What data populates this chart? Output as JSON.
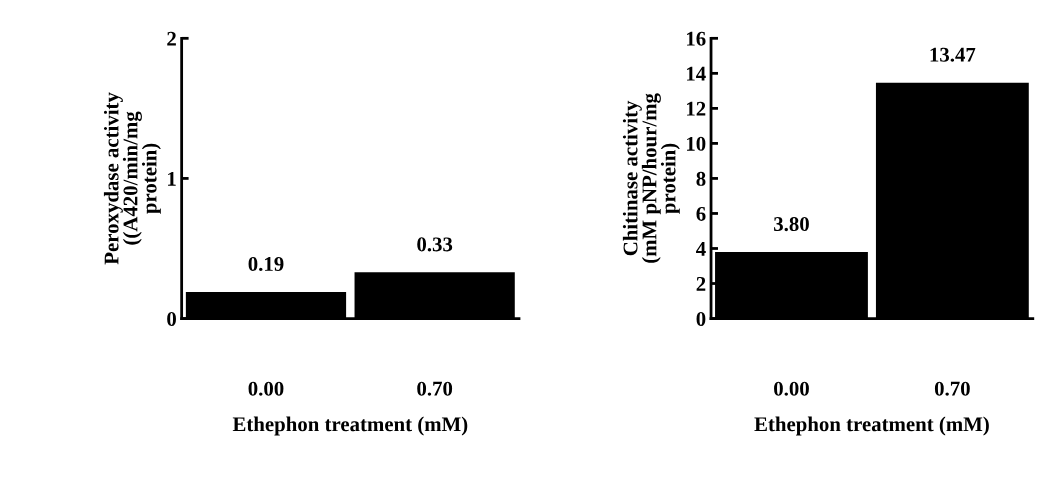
{
  "chart_data": [
    {
      "type": "bar",
      "categories": [
        "0.00",
        "0.70"
      ],
      "values": [
        0.19,
        0.33
      ],
      "color": "#000000",
      "ylim": [
        0,
        2
      ],
      "yticks": [
        0,
        1,
        2
      ],
      "ylabel": "Peroxydase activity\n((A420/min/mg\nprotein)",
      "xlabel": "Ethephon treatment (mM)",
      "data_labels": true,
      "grid": false
    },
    {
      "type": "bar",
      "categories": [
        "0.00",
        "0.70"
      ],
      "values": [
        3.8,
        13.47
      ],
      "value_labels": [
        "3.80",
        "13.47"
      ],
      "color": "#000000",
      "ylim": [
        0,
        16
      ],
      "yticks": [
        0,
        2,
        4,
        6,
        8,
        10,
        12,
        14,
        16
      ],
      "ylabel": "Chitinase activity\n(mM pNP/hour/mg\nprotein)",
      "xlabel": "Ethephon treatment (mM)",
      "grid": false
    }
  ]
}
